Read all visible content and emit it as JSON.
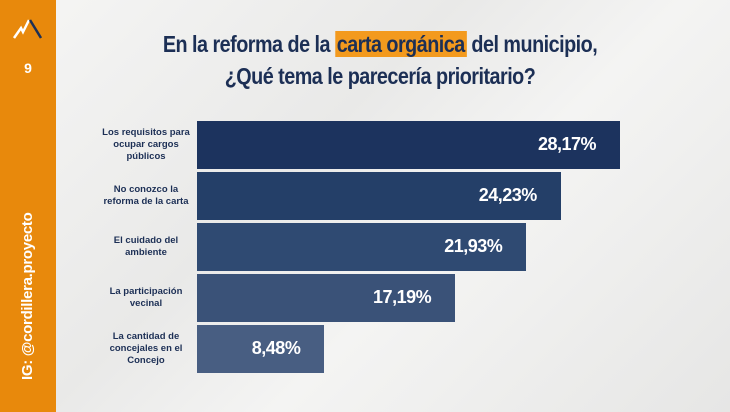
{
  "sidebar": {
    "page_number": "9",
    "instagram": "IG: @cordillera.proyecto"
  },
  "chart_data": {
    "type": "bar",
    "orientation": "horizontal",
    "title_parts": [
      "En la reforma de la ",
      "carta orgánica",
      " del municipio, ¿Qué tema le parecería prioritario?"
    ],
    "categories": [
      "Los requisitos para ocupar cargos públicos",
      "No conozco la reforma de la carta",
      "El cuidado del ambiente",
      "La participación vecinal",
      "La cantidad de concejales en el Concejo"
    ],
    "values": [
      28.17,
      24.23,
      21.93,
      17.19,
      8.48
    ],
    "labels": [
      "28,17%",
      "24,23%",
      "21,93%",
      "17,19%",
      "8,48%"
    ],
    "colors": [
      "#1c335e",
      "#243f68",
      "#2f4a72",
      "#3a5278",
      "#485e82"
    ],
    "highlight_color": "#f39a1e"
  }
}
